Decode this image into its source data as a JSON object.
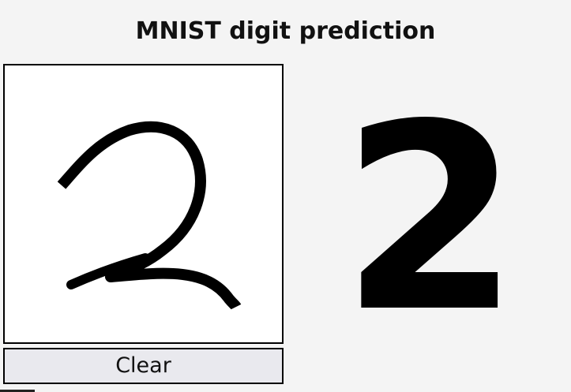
{
  "header": {
    "title": "MNIST digit prediction"
  },
  "canvas": {
    "stroke_color": "#000000",
    "background_color": "#ffffff"
  },
  "controls": {
    "clear_label": "Clear"
  },
  "result": {
    "predicted_digit": "2"
  }
}
